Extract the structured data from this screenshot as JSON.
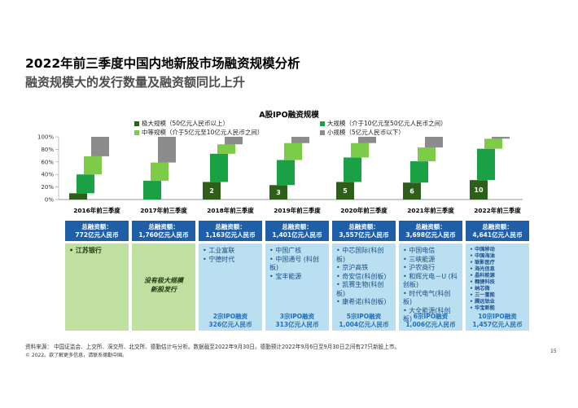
{
  "heading": "2022年前三季度中国内地新股市场融资规模分析",
  "subheading": "融资规模大的发行数量及融资额同比上升",
  "colors": {
    "very_large": "#2e5f1a",
    "large": "#1aa045",
    "medium": "#7ccc48",
    "small": "#8c8c8c",
    "header_blue": "#1f5fa8",
    "green_panel": "#bfe0a0",
    "blue_panel": "#b9dff0"
  },
  "chart_data": {
    "type": "bar",
    "title": "A股IPO融资规模",
    "categories": [
      "2016年前三季度",
      "2017年前三季度",
      "2018年前三季度",
      "2019年前三季度",
      "2020年前三季度",
      "2021年前三季度",
      "2022年前三季度"
    ],
    "ylim": [
      0,
      100
    ],
    "yticks": [
      "0%",
      "10%",
      "20%",
      "30%",
      "40%",
      "50%",
      "60%",
      "70%",
      "80%",
      "90%",
      "100%"
    ],
    "series": [
      {
        "name": "极大规模（50亿元人民币以上）",
        "values": [
          10,
          0,
          28,
          23,
          28,
          27,
          31
        ]
      },
      {
        "name": "大规模（介于10亿元至50亿元人民币之间）",
        "values": [
          30,
          30,
          45,
          40,
          39,
          34,
          50
        ]
      },
      {
        "name": "中等规模（介于5亿元至10亿元人民币之间）",
        "values": [
          29,
          29,
          15,
          27,
          23,
          22,
          16
        ]
      },
      {
        "name": "小规模（5亿元人民币以下）",
        "values": [
          31,
          41,
          12,
          10,
          10,
          17,
          3
        ]
      }
    ],
    "data_labels": [
      "",
      "",
      "2",
      "3",
      "5",
      "6",
      "10"
    ]
  },
  "columns": [
    {
      "head1": "总融资额：",
      "head2": "772亿元人民币",
      "panel": "green",
      "items": [
        "江苏银行"
      ],
      "none_msg": "",
      "foot1": "",
      "foot2": ""
    },
    {
      "head1": "总融资额：",
      "head2": "1,760亿元人民币",
      "panel": "green",
      "items": [],
      "none_msg": "没有极大规模 新股发行",
      "foot1": "",
      "foot2": ""
    },
    {
      "head1": "总融资额：",
      "head2": "1,163亿元人民币",
      "panel": "blue",
      "items": [
        "工业富联",
        "宁德时代"
      ],
      "none_msg": "",
      "foot1": "2宗IPO融资",
      "foot2": "326亿元人民币"
    },
    {
      "head1": "总融资额：",
      "head2": "1,401亿元人民币",
      "panel": "blue",
      "items": [
        "中国广核",
        "中国通号 (科创板)",
        "宝丰能源"
      ],
      "none_msg": "",
      "foot1": "3宗IPO融资",
      "foot2": "313亿元人民币"
    },
    {
      "head1": "总融资额：",
      "head2": "3,557亿元人民币",
      "panel": "blue",
      "items": [
        "中芯国际(科创板)",
        "京沪高铁",
        "奇安信(科创板)",
        "凯赛生物(科创板)",
        "康希诺(科创板)"
      ],
      "none_msg": "",
      "foot1": "5宗IPO融资",
      "foot2": "1,004亿元人民币"
    },
    {
      "head1": "总融资额：",
      "head2": "3,698亿元人民币",
      "panel": "blue",
      "items": [
        "中国电信",
        "三峡能源",
        "沪农商行",
        "和辉光电－U (科创板)",
        "时代电气(科创板)",
        "大全能源(科创板)"
      ],
      "none_msg": "",
      "foot1": "6宗IPO融资",
      "foot2": "1,006亿元人民币"
    },
    {
      "head1": "总融资额：",
      "head2": "4,641亿元人民币",
      "panel": "blue",
      "items": [
        "中国移动",
        "中国海油",
        "联影医疗",
        "海光信息",
        "晶科能源",
        "翱捷科技",
        "纳芯微",
        "三一重能",
        "腾远钴业",
        "华宝新能"
      ],
      "none_msg": "",
      "foot1": "10宗IPO融资",
      "foot2": "1,457亿元人民币"
    }
  ],
  "source": "资料来源： 中国证监会、上交所、深交所、北交所、德勤估计与分析。数据截至2022年9月30日。德勤预计2022年9月6日至9月30日之间有27只新股上市。",
  "copyright": "© 2022。欲了解更多信息，请联系德勤中国。",
  "page_number": "15"
}
